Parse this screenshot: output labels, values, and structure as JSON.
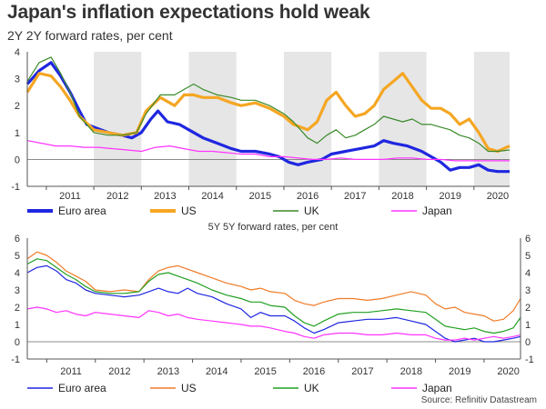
{
  "title": "Japan's inflation expectations hold weak",
  "source": "Source: Refinitiv Datastream",
  "colors": {
    "euro": "#1f27e0",
    "us": "#f5a623",
    "uk": "#3a8a2a",
    "japan": "#ff33ff"
  },
  "chart_data": [
    {
      "type": "line",
      "title": "2Y 2Y forward rates, per cent",
      "ylim": [
        -1,
        4
      ],
      "yticks": [
        -1,
        0,
        1,
        2,
        3,
        4
      ],
      "xlim": [
        2010.6,
        2020.75
      ],
      "xtick_labels": [
        "2011",
        "2012",
        "2013",
        "2014",
        "2015",
        "2016",
        "2017",
        "2018",
        "2019",
        "2020"
      ],
      "shaded_years": [
        2012,
        2014,
        2016,
        2018,
        2020
      ],
      "legend_position": "bottom",
      "series": [
        {
          "name": "Euro area",
          "color": "#1f27e0",
          "width": 3.2,
          "x": [
            2010.6,
            2010.85,
            2011.1,
            2011.3,
            2011.5,
            2011.7,
            2011.85,
            2012.0,
            2012.3,
            2012.6,
            2012.8,
            2013.0,
            2013.2,
            2013.35,
            2013.55,
            2013.8,
            2014.0,
            2014.3,
            2014.6,
            2014.9,
            2015.1,
            2015.4,
            2015.7,
            2015.9,
            2016.1,
            2016.3,
            2016.5,
            2016.8,
            2017.0,
            2017.3,
            2017.6,
            2017.9,
            2018.1,
            2018.3,
            2018.6,
            2018.9,
            2019.1,
            2019.3,
            2019.5,
            2019.7,
            2019.9,
            2020.1,
            2020.3,
            2020.5,
            2020.75
          ],
          "y": [
            2.8,
            3.3,
            3.6,
            3.1,
            2.5,
            1.8,
            1.3,
            1.2,
            1.0,
            0.9,
            0.8,
            1.0,
            1.5,
            1.8,
            1.4,
            1.3,
            1.1,
            0.8,
            0.6,
            0.4,
            0.3,
            0.3,
            0.2,
            0.1,
            -0.1,
            -0.2,
            -0.1,
            0.0,
            0.2,
            0.3,
            0.4,
            0.5,
            0.7,
            0.6,
            0.5,
            0.3,
            0.1,
            -0.1,
            -0.4,
            -0.3,
            -0.3,
            -0.2,
            -0.4,
            -0.45,
            -0.45
          ]
        },
        {
          "name": "US",
          "color": "#f5a623",
          "width": 3.2,
          "x": [
            2010.6,
            2010.85,
            2011.1,
            2011.3,
            2011.5,
            2011.7,
            2012.0,
            2012.3,
            2012.6,
            2012.9,
            2013.1,
            2013.4,
            2013.7,
            2013.9,
            2014.1,
            2014.3,
            2014.6,
            2014.9,
            2015.1,
            2015.4,
            2015.7,
            2016.0,
            2016.2,
            2016.5,
            2016.7,
            2016.9,
            2017.1,
            2017.3,
            2017.5,
            2017.7,
            2017.9,
            2018.1,
            2018.3,
            2018.5,
            2018.7,
            2018.9,
            2019.1,
            2019.3,
            2019.5,
            2019.7,
            2019.9,
            2020.1,
            2020.3,
            2020.5,
            2020.75
          ],
          "y": [
            2.5,
            3.2,
            3.1,
            2.7,
            2.2,
            1.6,
            1.1,
            1.0,
            0.9,
            1.0,
            1.8,
            2.3,
            2.0,
            2.4,
            2.4,
            2.3,
            2.3,
            2.1,
            2.0,
            2.1,
            1.9,
            1.6,
            1.3,
            1.1,
            1.4,
            2.2,
            2.5,
            2.0,
            1.6,
            1.7,
            2.0,
            2.6,
            2.9,
            3.2,
            2.7,
            2.2,
            1.9,
            1.9,
            1.7,
            1.3,
            1.5,
            1.0,
            0.4,
            0.3,
            0.5
          ]
        },
        {
          "name": "UK",
          "color": "#3a8a2a",
          "width": 1.2,
          "x": [
            2010.6,
            2010.85,
            2011.1,
            2011.3,
            2011.5,
            2011.7,
            2012.0,
            2012.3,
            2012.6,
            2012.9,
            2013.1,
            2013.4,
            2013.7,
            2013.9,
            2014.1,
            2014.3,
            2014.6,
            2014.9,
            2015.1,
            2015.4,
            2015.7,
            2016.0,
            2016.2,
            2016.5,
            2016.7,
            2016.9,
            2017.1,
            2017.3,
            2017.5,
            2017.7,
            2017.9,
            2018.1,
            2018.3,
            2018.5,
            2018.7,
            2018.9,
            2019.1,
            2019.3,
            2019.5,
            2019.7,
            2019.9,
            2020.1,
            2020.3,
            2020.5,
            2020.75
          ],
          "y": [
            2.9,
            3.6,
            3.8,
            3.2,
            2.5,
            1.6,
            1.0,
            0.9,
            0.9,
            1.0,
            1.7,
            2.4,
            2.4,
            2.6,
            2.8,
            2.6,
            2.4,
            2.3,
            2.2,
            2.2,
            2.0,
            1.7,
            1.4,
            0.8,
            0.6,
            0.9,
            1.1,
            0.8,
            0.9,
            1.1,
            1.3,
            1.6,
            1.5,
            1.4,
            1.5,
            1.3,
            1.3,
            1.2,
            1.1,
            0.9,
            0.8,
            0.6,
            0.3,
            0.3,
            0.35
          ]
        },
        {
          "name": "Japan",
          "color": "#ff33ff",
          "width": 1.2,
          "x": [
            2010.6,
            2010.9,
            2011.2,
            2011.5,
            2011.8,
            2012.1,
            2012.4,
            2012.7,
            2013.0,
            2013.3,
            2013.6,
            2013.9,
            2014.2,
            2014.5,
            2014.8,
            2015.1,
            2015.4,
            2015.7,
            2016.0,
            2016.3,
            2016.6,
            2016.9,
            2017.2,
            2017.5,
            2017.8,
            2018.1,
            2018.4,
            2018.7,
            2019.0,
            2019.3,
            2019.6,
            2019.9,
            2020.2,
            2020.5,
            2020.75
          ],
          "y": [
            0.7,
            0.6,
            0.5,
            0.5,
            0.45,
            0.45,
            0.4,
            0.35,
            0.3,
            0.45,
            0.5,
            0.4,
            0.3,
            0.3,
            0.25,
            0.2,
            0.2,
            0.1,
            0.1,
            0.05,
            0.0,
            0.0,
            0.05,
            0.0,
            0.0,
            0.0,
            0.05,
            0.05,
            0.0,
            0.0,
            -0.05,
            -0.05,
            -0.05,
            -0.05,
            -0.05
          ]
        }
      ]
    },
    {
      "type": "line",
      "title": "5Y 5Y forward rates, per cent",
      "ylim": [
        -1,
        6
      ],
      "yticks": [
        -1,
        0,
        1,
        2,
        3,
        4,
        5,
        6
      ],
      "xlim": [
        2010.6,
        2020.75
      ],
      "xtick_labels": [
        "2011",
        "2012",
        "2013",
        "2014",
        "2015",
        "2016",
        "2017",
        "2018",
        "2019",
        "2020"
      ],
      "legend_position": "bottom",
      "series": [
        {
          "name": "Euro area",
          "color": "#1f27e0",
          "width": 1.2,
          "x": [
            2010.6,
            2010.8,
            2011.0,
            2011.2,
            2011.4,
            2011.6,
            2011.8,
            2012.0,
            2012.3,
            2012.6,
            2012.9,
            2013.1,
            2013.3,
            2013.5,
            2013.7,
            2013.9,
            2014.1,
            2014.4,
            2014.7,
            2015.0,
            2015.2,
            2015.4,
            2015.6,
            2015.9,
            2016.1,
            2016.3,
            2016.5,
            2016.7,
            2017.0,
            2017.3,
            2017.6,
            2017.9,
            2018.2,
            2018.5,
            2018.8,
            2019.0,
            2019.2,
            2019.4,
            2019.6,
            2019.8,
            2020.0,
            2020.2,
            2020.4,
            2020.6,
            2020.75
          ],
          "y": [
            4.0,
            4.3,
            4.4,
            4.1,
            3.6,
            3.4,
            3.0,
            2.8,
            2.7,
            2.6,
            2.7,
            2.9,
            3.1,
            2.9,
            2.8,
            3.1,
            2.8,
            2.6,
            2.2,
            1.9,
            1.4,
            1.7,
            1.5,
            1.5,
            1.2,
            0.8,
            0.5,
            0.7,
            1.1,
            1.2,
            1.3,
            1.3,
            1.4,
            1.2,
            1.0,
            0.6,
            0.2,
            0.0,
            0.1,
            0.2,
            0.0,
            0.0,
            0.1,
            0.2,
            0.3
          ]
        },
        {
          "name": "US",
          "color": "#f07c28",
          "width": 1.2,
          "x": [
            2010.6,
            2010.8,
            2011.0,
            2011.2,
            2011.4,
            2011.6,
            2011.8,
            2012.0,
            2012.3,
            2012.6,
            2012.9,
            2013.1,
            2013.3,
            2013.5,
            2013.7,
            2013.9,
            2014.1,
            2014.4,
            2014.7,
            2015.0,
            2015.2,
            2015.4,
            2015.6,
            2015.9,
            2016.1,
            2016.3,
            2016.5,
            2016.7,
            2017.0,
            2017.3,
            2017.6,
            2017.9,
            2018.2,
            2018.5,
            2018.8,
            2019.0,
            2019.2,
            2019.4,
            2019.6,
            2019.8,
            2020.0,
            2020.2,
            2020.4,
            2020.6,
            2020.75
          ],
          "y": [
            4.8,
            5.2,
            5.0,
            4.6,
            4.1,
            3.8,
            3.5,
            3.0,
            2.9,
            3.0,
            2.9,
            3.6,
            4.1,
            4.3,
            4.4,
            4.2,
            4.0,
            3.7,
            3.4,
            3.2,
            3.0,
            3.1,
            2.9,
            2.8,
            2.4,
            2.2,
            2.1,
            2.3,
            2.5,
            2.5,
            2.4,
            2.5,
            2.7,
            2.9,
            2.7,
            2.2,
            1.9,
            2.0,
            1.7,
            1.6,
            1.5,
            1.2,
            1.3,
            1.8,
            2.5
          ]
        },
        {
          "name": "UK",
          "color": "#22a022",
          "width": 1.2,
          "x": [
            2010.6,
            2010.8,
            2011.0,
            2011.2,
            2011.4,
            2011.6,
            2011.8,
            2012.0,
            2012.3,
            2012.6,
            2012.9,
            2013.1,
            2013.3,
            2013.5,
            2013.7,
            2013.9,
            2014.1,
            2014.4,
            2014.7,
            2015.0,
            2015.2,
            2015.4,
            2015.6,
            2015.9,
            2016.1,
            2016.3,
            2016.5,
            2016.7,
            2017.0,
            2017.3,
            2017.6,
            2017.9,
            2018.2,
            2018.5,
            2018.8,
            2019.0,
            2019.2,
            2019.4,
            2019.6,
            2019.8,
            2020.0,
            2020.2,
            2020.4,
            2020.6,
            2020.75
          ],
          "y": [
            4.5,
            4.8,
            4.7,
            4.3,
            3.9,
            3.6,
            3.2,
            2.9,
            2.8,
            2.8,
            2.9,
            3.5,
            3.9,
            4.0,
            3.8,
            3.6,
            3.4,
            3.0,
            2.7,
            2.5,
            2.3,
            2.3,
            2.1,
            2.0,
            1.5,
            1.1,
            0.9,
            1.2,
            1.6,
            1.7,
            1.7,
            1.8,
            1.9,
            1.8,
            1.7,
            1.3,
            0.9,
            0.8,
            0.7,
            0.8,
            0.6,
            0.5,
            0.6,
            0.8,
            1.4
          ]
        },
        {
          "name": "Japan",
          "color": "#ff33ff",
          "width": 1.2,
          "x": [
            2010.6,
            2010.8,
            2011.0,
            2011.2,
            2011.4,
            2011.6,
            2011.8,
            2012.0,
            2012.3,
            2012.6,
            2012.9,
            2013.1,
            2013.3,
            2013.5,
            2013.7,
            2013.9,
            2014.1,
            2014.4,
            2014.7,
            2015.0,
            2015.2,
            2015.4,
            2015.6,
            2015.9,
            2016.1,
            2016.3,
            2016.5,
            2016.7,
            2017.0,
            2017.3,
            2017.6,
            2017.9,
            2018.2,
            2018.5,
            2018.8,
            2019.0,
            2019.2,
            2019.4,
            2019.6,
            2019.8,
            2020.0,
            2020.2,
            2020.4,
            2020.6,
            2020.75
          ],
          "y": [
            1.9,
            2.0,
            1.9,
            1.7,
            1.8,
            1.6,
            1.5,
            1.7,
            1.6,
            1.5,
            1.4,
            1.8,
            1.7,
            1.5,
            1.6,
            1.4,
            1.3,
            1.2,
            1.1,
            1.0,
            0.9,
            0.9,
            0.8,
            0.6,
            0.5,
            0.3,
            0.2,
            0.4,
            0.5,
            0.5,
            0.4,
            0.4,
            0.5,
            0.4,
            0.4,
            0.2,
            0.1,
            0.1,
            0.2,
            0.1,
            0.2,
            0.3,
            0.2,
            0.3,
            0.4
          ]
        }
      ]
    }
  ]
}
